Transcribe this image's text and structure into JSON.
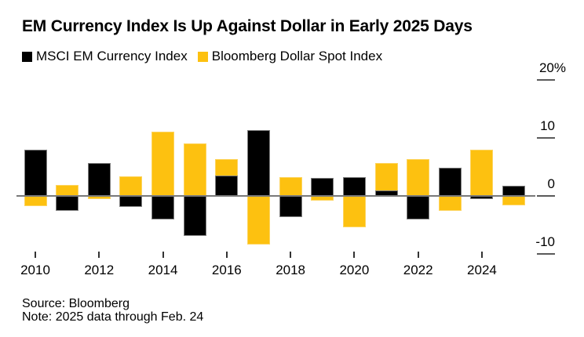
{
  "title": "EM Currency Index Is Up Against Dollar in Early 2025 Days",
  "legend": {
    "items": [
      {
        "label": "MSCI EM Currency Index",
        "color": "#000000"
      },
      {
        "label": "Bloomberg Dollar Spot Index",
        "color": "#FDC110"
      }
    ]
  },
  "footer": {
    "source": "Source: Bloomberg",
    "note": "Note: 2025 data through Feb. 24"
  },
  "colors": {
    "background": "#ffffff",
    "zero_line": "#797979",
    "axis_dash": "#5a5a5a",
    "x_tick": "#333333",
    "text": "#000000",
    "bar_black": "#000000",
    "bar_black_border": "#7e7e7e",
    "bar_yellow": "#FDC110",
    "bar_yellow_border": "#fdd45e"
  },
  "chart_data": {
    "type": "bar",
    "title": "EM Currency Index Is Up Against Dollar in Early 2025 Days",
    "unit": "%",
    "categories": [
      2010,
      2011,
      2012,
      2013,
      2014,
      2015,
      2016,
      2017,
      2018,
      2019,
      2020,
      2021,
      2022,
      2023,
      2024,
      2025
    ],
    "series": [
      {
        "name": "MSCI EM Currency Index",
        "key": "msci-em-currency-index",
        "color": "#000000",
        "border": "#7e7e7e",
        "values": [
          8.0,
          -2.5,
          5.6,
          -1.9,
          -4.1,
          -6.9,
          3.5,
          11.3,
          -3.6,
          3.1,
          3.2,
          0.9,
          -4.1,
          4.8,
          -0.5,
          1.7
        ]
      },
      {
        "name": "Bloomberg Dollar Spot Index",
        "key": "bloomberg-dollar-spot-index",
        "color": "#FDC110",
        "border": "#fdd45e",
        "values": [
          -1.7,
          1.9,
          -0.6,
          3.4,
          11.0,
          9.0,
          6.3,
          -8.3,
          3.2,
          -0.8,
          -5.4,
          5.6,
          6.3,
          -2.6,
          8.0,
          -1.6
        ]
      }
    ],
    "y_axis": {
      "side": "right",
      "range": [
        -12.5,
        21
      ],
      "ticks": [
        {
          "label": "20%",
          "value": 20
        },
        {
          "label": "10",
          "value": 10
        },
        {
          "label": "0",
          "value": 0
        },
        {
          "label": "-10",
          "value": -10
        }
      ]
    },
    "x_axis": {
      "tick_years": [
        2010,
        2012,
        2014,
        2016,
        2018,
        2020,
        2022,
        2024
      ]
    },
    "grid": "zero-line-only",
    "legend_position": "top-left",
    "bar_mode": "overlapped-same-x"
  }
}
